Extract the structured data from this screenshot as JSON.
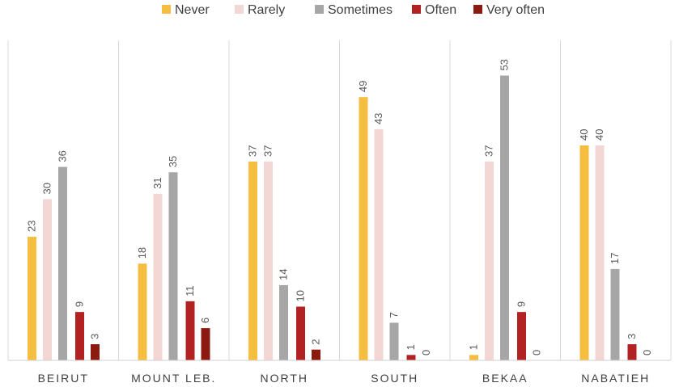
{
  "chart_data": {
    "type": "bar",
    "categories": [
      "BEIRUT",
      "MOUNT LEB.",
      "NORTH",
      "SOUTH",
      "BEKAA",
      "NABATIEH"
    ],
    "series": [
      {
        "name": "Never",
        "color": "#F5BE41",
        "values": [
          23,
          18,
          37,
          49,
          1,
          40
        ]
      },
      {
        "name": "Rarely",
        "color": "#F2D7D5",
        "values": [
          30,
          31,
          37,
          43,
          37,
          40
        ]
      },
      {
        "name": "Sometimes",
        "color": "#A6A6A6",
        "values": [
          36,
          35,
          14,
          7,
          53,
          17
        ]
      },
      {
        "name": "Often",
        "color": "#B22222",
        "values": [
          9,
          11,
          10,
          1,
          9,
          3
        ]
      },
      {
        "name": "Very often",
        "color": "#8B1A10",
        "values": [
          3,
          6,
          2,
          0,
          0,
          0
        ]
      }
    ],
    "ylim": [
      0,
      55
    ],
    "legend_position": "top",
    "grid": false,
    "category_separators": true,
    "data_labels": "vertical-above-bars"
  }
}
